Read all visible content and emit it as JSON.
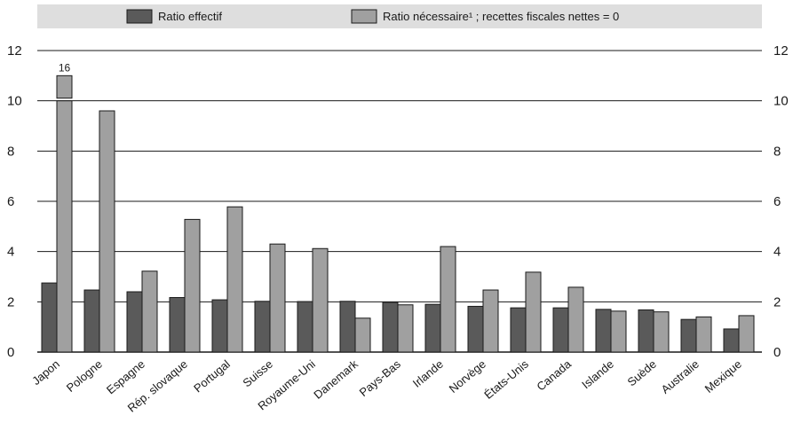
{
  "chart_data": {
    "type": "bar",
    "categories": [
      "Japon",
      "Pologne",
      "Espagne",
      "Rép. slovaque",
      "Portugal",
      "Suisse",
      "Royaume-Uni",
      "Danemark",
      "Pays-Bas",
      "Irlande",
      "Norvège",
      "États-Unis",
      "Canada",
      "Islande",
      "Suède",
      "Australie",
      "Mexique"
    ],
    "series": [
      {
        "name": "Ratio effectif",
        "color": "#5a5a5a",
        "values": [
          2.75,
          2.47,
          2.4,
          2.17,
          2.08,
          2.02,
          2.01,
          2.02,
          1.98,
          1.9,
          1.82,
          1.76,
          1.76,
          1.7,
          1.68,
          1.3,
          0.92
        ]
      },
      {
        "name": "Ratio nécessaire¹ ; recettes fiscales nettes = 0",
        "color": "#a0a0a0",
        "values": [
          16,
          9.6,
          3.22,
          5.28,
          5.78,
          4.3,
          4.12,
          1.35,
          1.88,
          4.2,
          2.47,
          3.18,
          2.58,
          1.63,
          1.6,
          1.4,
          1.45
        ]
      }
    ],
    "data_labels": [
      {
        "category": "Japon",
        "series": 1,
        "text": "16"
      }
    ],
    "axis_break": {
      "category": "Japon",
      "series": 1
    },
    "ylim": [
      0,
      12
    ],
    "yticks": [
      0,
      2,
      4,
      6,
      8,
      10,
      12
    ],
    "y_axis_right_mirror": true,
    "grid": true,
    "legend_position": "top",
    "title": "",
    "xlabel": "",
    "ylabel": ""
  }
}
